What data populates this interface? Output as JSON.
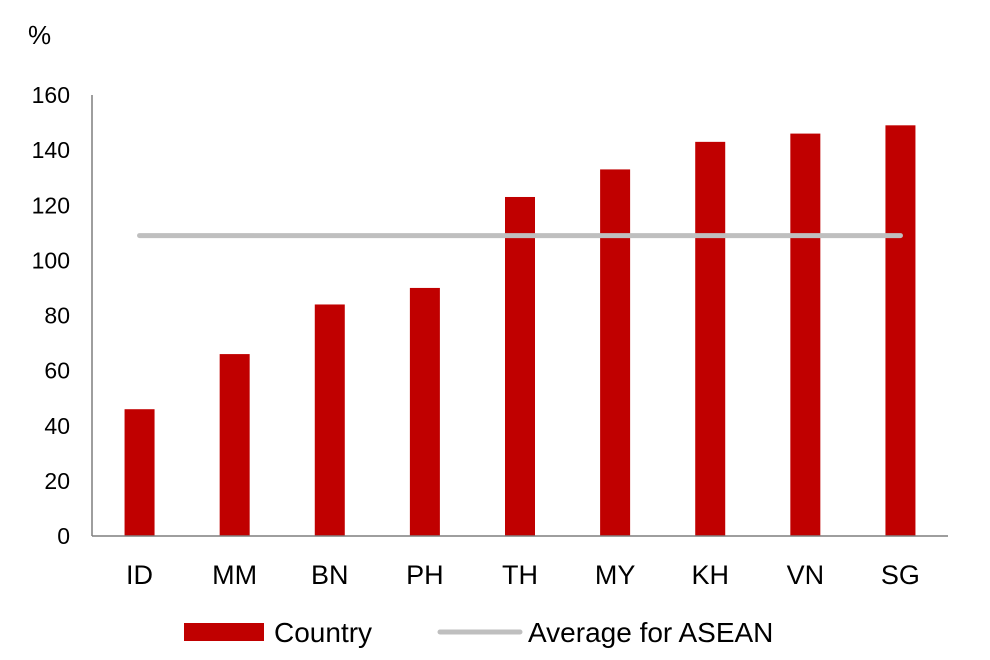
{
  "chart_data": {
    "type": "bar",
    "unit_label": "%",
    "categories": [
      "ID",
      "MM",
      "BN",
      "PH",
      "TH",
      "MY",
      "KH",
      "VN",
      "SG"
    ],
    "series": [
      {
        "name": "Country",
        "kind": "bar",
        "color": "#c00000",
        "values": [
          46,
          66,
          84,
          90,
          123,
          133,
          143,
          146,
          149
        ]
      },
      {
        "name": "Average for ASEAN",
        "kind": "line",
        "color": "#bfbfbf",
        "values": [
          109,
          109,
          109,
          109,
          109,
          109,
          109,
          109,
          109
        ]
      }
    ],
    "ylim": [
      0,
      160
    ],
    "yticks": [
      0,
      20,
      40,
      60,
      80,
      100,
      120,
      140,
      160
    ],
    "grid": false,
    "legend_position": "bottom"
  }
}
